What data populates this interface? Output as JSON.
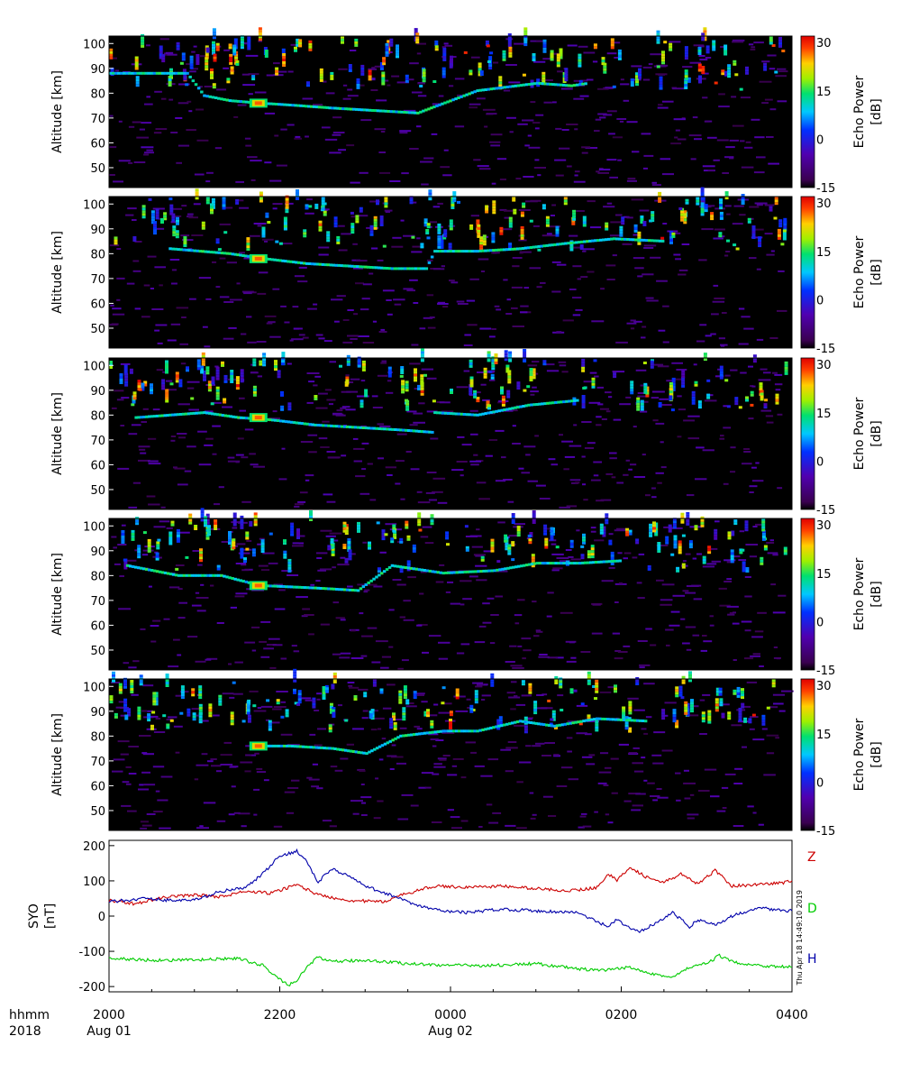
{
  "chart_data": [
    {
      "type": "heatmap",
      "panel": 1,
      "ylabel": "Altitude [km]",
      "yticks": [
        "100",
        "90",
        "80",
        "70",
        "60",
        "50"
      ],
      "ylim": [
        42,
        103
      ],
      "colorbar": {
        "label": "Echo Power [dB]",
        "ticks": [
          "30",
          "15",
          "0",
          "-15"
        ],
        "range": [
          -15,
          32
        ]
      },
      "echo_layer": [
        {
          "hour": 20.0,
          "alt_km": 88
        },
        {
          "hour": 20.9,
          "alt_km": 88
        },
        {
          "hour": 21.1,
          "alt_km": 79
        },
        {
          "hour": 21.4,
          "alt_km": 77
        },
        {
          "hour": 21.75,
          "alt_km": 76
        },
        {
          "hour": 22.2,
          "alt_km": 75
        },
        {
          "hour": 22.6,
          "alt_km": 74
        },
        {
          "hour": 23.1,
          "alt_km": 73
        },
        {
          "hour": 23.6,
          "alt_km": 72
        },
        {
          "hour": 24.3,
          "alt_km": 81
        },
        {
          "hour": 25.0,
          "alt_km": 84
        },
        {
          "hour": 25.4,
          "alt_km": 83
        },
        {
          "hour": 25.6,
          "alt_km": 84
        }
      ]
    },
    {
      "type": "heatmap",
      "panel": 2,
      "ylabel": "Altitude [km]",
      "yticks": [
        "100",
        "90",
        "80",
        "70",
        "60",
        "50"
      ],
      "ylim": [
        42,
        103
      ],
      "colorbar": {
        "label": "Echo Power [dB]",
        "ticks": [
          "30",
          "15",
          "0",
          "-15"
        ],
        "range": [
          -15,
          32
        ]
      },
      "echo_layer": [
        {
          "hour": 20.7,
          "alt_km": 82
        },
        {
          "hour": 21.4,
          "alt_km": 80
        },
        {
          "hour": 21.8,
          "alt_km": 78
        },
        {
          "hour": 22.3,
          "alt_km": 76
        },
        {
          "hour": 22.8,
          "alt_km": 75
        },
        {
          "hour": 23.3,
          "alt_km": 74
        },
        {
          "hour": 23.7,
          "alt_km": 74
        },
        {
          "hour": 23.8,
          "alt_km": 81
        },
        {
          "hour": 24.3,
          "alt_km": 81
        },
        {
          "hour": 24.8,
          "alt_km": 82
        },
        {
          "hour": 25.3,
          "alt_km": 84
        },
        {
          "hour": 25.9,
          "alt_km": 86
        },
        {
          "hour": 26.5,
          "alt_km": 85
        }
      ]
    },
    {
      "type": "heatmap",
      "panel": 3,
      "ylabel": "Altitude [km]",
      "yticks": [
        "100",
        "90",
        "80",
        "70",
        "60",
        "50"
      ],
      "ylim": [
        42,
        103
      ],
      "colorbar": {
        "label": "Echo Power [dB]",
        "ticks": [
          "30",
          "15",
          "0",
          "-15"
        ],
        "range": [
          -15,
          32
        ]
      },
      "echo_layer": [
        {
          "hour": 20.3,
          "alt_km": 79
        },
        {
          "hour": 20.7,
          "alt_km": 80
        },
        {
          "hour": 21.1,
          "alt_km": 81
        },
        {
          "hour": 21.5,
          "alt_km": 79
        },
        {
          "hour": 21.9,
          "alt_km": 78
        },
        {
          "hour": 22.4,
          "alt_km": 76
        },
        {
          "hour": 22.9,
          "alt_km": 75
        },
        {
          "hour": 23.4,
          "alt_km": 74
        },
        {
          "hour": 23.8,
          "alt_km": 73
        },
        {
          "hour": 23.8,
          "alt_km": 81
        },
        {
          "hour": 24.3,
          "alt_km": 80
        },
        {
          "hour": 24.9,
          "alt_km": 84
        },
        {
          "hour": 25.5,
          "alt_km": 86
        }
      ]
    },
    {
      "type": "heatmap",
      "panel": 4,
      "ylabel": "Altitude [km]",
      "yticks": [
        "100",
        "90",
        "80",
        "70",
        "60",
        "50"
      ],
      "ylim": [
        42,
        103
      ],
      "colorbar": {
        "label": "Echo Power [dB]",
        "ticks": [
          "30",
          "15",
          "0",
          "-15"
        ],
        "range": [
          -15,
          32
        ]
      },
      "echo_layer": [
        {
          "hour": 20.2,
          "alt_km": 84
        },
        {
          "hour": 20.8,
          "alt_km": 80
        },
        {
          "hour": 21.3,
          "alt_km": 80
        },
        {
          "hour": 21.75,
          "alt_km": 76
        },
        {
          "hour": 22.4,
          "alt_km": 75
        },
        {
          "hour": 22.9,
          "alt_km": 74
        },
        {
          "hour": 23.3,
          "alt_km": 84
        },
        {
          "hour": 23.9,
          "alt_km": 81
        },
        {
          "hour": 24.5,
          "alt_km": 82
        },
        {
          "hour": 25.0,
          "alt_km": 85
        },
        {
          "hour": 25.5,
          "alt_km": 85
        },
        {
          "hour": 26.0,
          "alt_km": 86
        }
      ]
    },
    {
      "type": "heatmap",
      "panel": 5,
      "ylabel": "Altitude [km]",
      "yticks": [
        "100",
        "90",
        "80",
        "70",
        "60",
        "50"
      ],
      "ylim": [
        42,
        103
      ],
      "colorbar": {
        "label": "Echo Power [dB]",
        "ticks": [
          "30",
          "15",
          "0",
          "-15"
        ],
        "range": [
          -15,
          32
        ]
      },
      "echo_layer": [
        {
          "hour": 21.75,
          "alt_km": 76
        },
        {
          "hour": 22.1,
          "alt_km": 76
        },
        {
          "hour": 22.6,
          "alt_km": 75
        },
        {
          "hour": 23.0,
          "alt_km": 73
        },
        {
          "hour": 23.4,
          "alt_km": 80
        },
        {
          "hour": 23.9,
          "alt_km": 82
        },
        {
          "hour": 24.3,
          "alt_km": 82
        },
        {
          "hour": 24.8,
          "alt_km": 86
        },
        {
          "hour": 25.2,
          "alt_km": 84
        },
        {
          "hour": 25.7,
          "alt_km": 87
        },
        {
          "hour": 26.3,
          "alt_km": 86
        }
      ]
    },
    {
      "type": "line",
      "panel": 6,
      "ylabel": "SYO [nT]",
      "yticks": [
        "200",
        "100",
        "0",
        "-100",
        "-200"
      ],
      "ylim": [
        -215,
        215
      ],
      "series": [
        {
          "name": "Z",
          "color": "#cc0000",
          "points": [
            [
              20.0,
              45
            ],
            [
              20.3,
              35
            ],
            [
              20.7,
              55
            ],
            [
              21.0,
              60
            ],
            [
              21.3,
              55
            ],
            [
              21.6,
              70
            ],
            [
              21.9,
              65
            ],
            [
              22.2,
              90
            ],
            [
              22.45,
              60
            ],
            [
              22.8,
              45
            ],
            [
              23.2,
              40
            ],
            [
              23.5,
              65
            ],
            [
              23.8,
              85
            ],
            [
              24.2,
              82
            ],
            [
              24.6,
              85
            ],
            [
              25.0,
              78
            ],
            [
              25.4,
              72
            ],
            [
              25.7,
              80
            ],
            [
              25.85,
              120
            ],
            [
              25.95,
              100
            ],
            [
              26.1,
              140
            ],
            [
              26.3,
              110
            ],
            [
              26.5,
              95
            ],
            [
              26.7,
              120
            ],
            [
              26.9,
              90
            ],
            [
              27.1,
              130
            ],
            [
              27.3,
              85
            ],
            [
              27.6,
              90
            ],
            [
              27.9,
              95
            ],
            [
              28.0,
              100
            ]
          ]
        },
        {
          "name": "D",
          "color": "#00cc00",
          "points": [
            [
              20.0,
              -120
            ],
            [
              20.5,
              -125
            ],
            [
              21.0,
              -125
            ],
            [
              21.5,
              -120
            ],
            [
              21.8,
              -140
            ],
            [
              22.0,
              -180
            ],
            [
              22.1,
              -195
            ],
            [
              22.2,
              -185
            ],
            [
              22.3,
              -150
            ],
            [
              22.45,
              -115
            ],
            [
              22.6,
              -130
            ],
            [
              23.0,
              -125
            ],
            [
              23.5,
              -135
            ],
            [
              24.0,
              -140
            ],
            [
              24.5,
              -140
            ],
            [
              25.0,
              -135
            ],
            [
              25.5,
              -150
            ],
            [
              25.8,
              -155
            ],
            [
              26.1,
              -145
            ],
            [
              26.4,
              -165
            ],
            [
              26.6,
              -175
            ],
            [
              26.8,
              -145
            ],
            [
              27.0,
              -135
            ],
            [
              27.15,
              -112
            ],
            [
              27.3,
              -130
            ],
            [
              27.6,
              -140
            ],
            [
              28.0,
              -145
            ]
          ]
        },
        {
          "name": "H",
          "color": "#0000aa",
          "points": [
            [
              20.0,
              40
            ],
            [
              20.4,
              50
            ],
            [
              20.7,
              45
            ],
            [
              21.0,
              45
            ],
            [
              21.3,
              70
            ],
            [
              21.6,
              80
            ],
            [
              21.8,
              120
            ],
            [
              22.0,
              170
            ],
            [
              22.2,
              185
            ],
            [
              22.3,
              160
            ],
            [
              22.45,
              95
            ],
            [
              22.6,
              135
            ],
            [
              22.8,
              115
            ],
            [
              23.0,
              85
            ],
            [
              23.3,
              60
            ],
            [
              23.6,
              30
            ],
            [
              23.9,
              15
            ],
            [
              24.2,
              10
            ],
            [
              24.6,
              20
            ],
            [
              25.0,
              15
            ],
            [
              25.5,
              10
            ],
            [
              25.7,
              -15
            ],
            [
              25.85,
              -30
            ],
            [
              25.95,
              -10
            ],
            [
              26.1,
              -35
            ],
            [
              26.2,
              -45
            ],
            [
              26.4,
              -20
            ],
            [
              26.6,
              10
            ],
            [
              26.8,
              -30
            ],
            [
              26.9,
              -10
            ],
            [
              27.1,
              -25
            ],
            [
              27.3,
              0
            ],
            [
              27.6,
              25
            ],
            [
              27.9,
              15
            ],
            [
              28.0,
              15
            ]
          ]
        }
      ]
    }
  ],
  "xaxis": {
    "label_line1": "hhmm",
    "label_line2": "2018",
    "ticks": [
      {
        "hour": 20,
        "label": "2000",
        "date": "Aug 01"
      },
      {
        "hour": 22,
        "label": "2200",
        "date": ""
      },
      {
        "hour": 24,
        "label": "0000",
        "date": "Aug 02"
      },
      {
        "hour": 26,
        "label": "0200",
        "date": ""
      },
      {
        "hour": 28,
        "label": "0400",
        "date": ""
      }
    ],
    "range": [
      20,
      28
    ]
  },
  "mag_legend": [
    {
      "label": "Z",
      "color": "#cc0000"
    },
    {
      "label": "D",
      "color": "#00cc00"
    },
    {
      "label": "H",
      "color": "#0000aa"
    }
  ],
  "timestamp": "Thu Apr 18 14:49:10 2019"
}
